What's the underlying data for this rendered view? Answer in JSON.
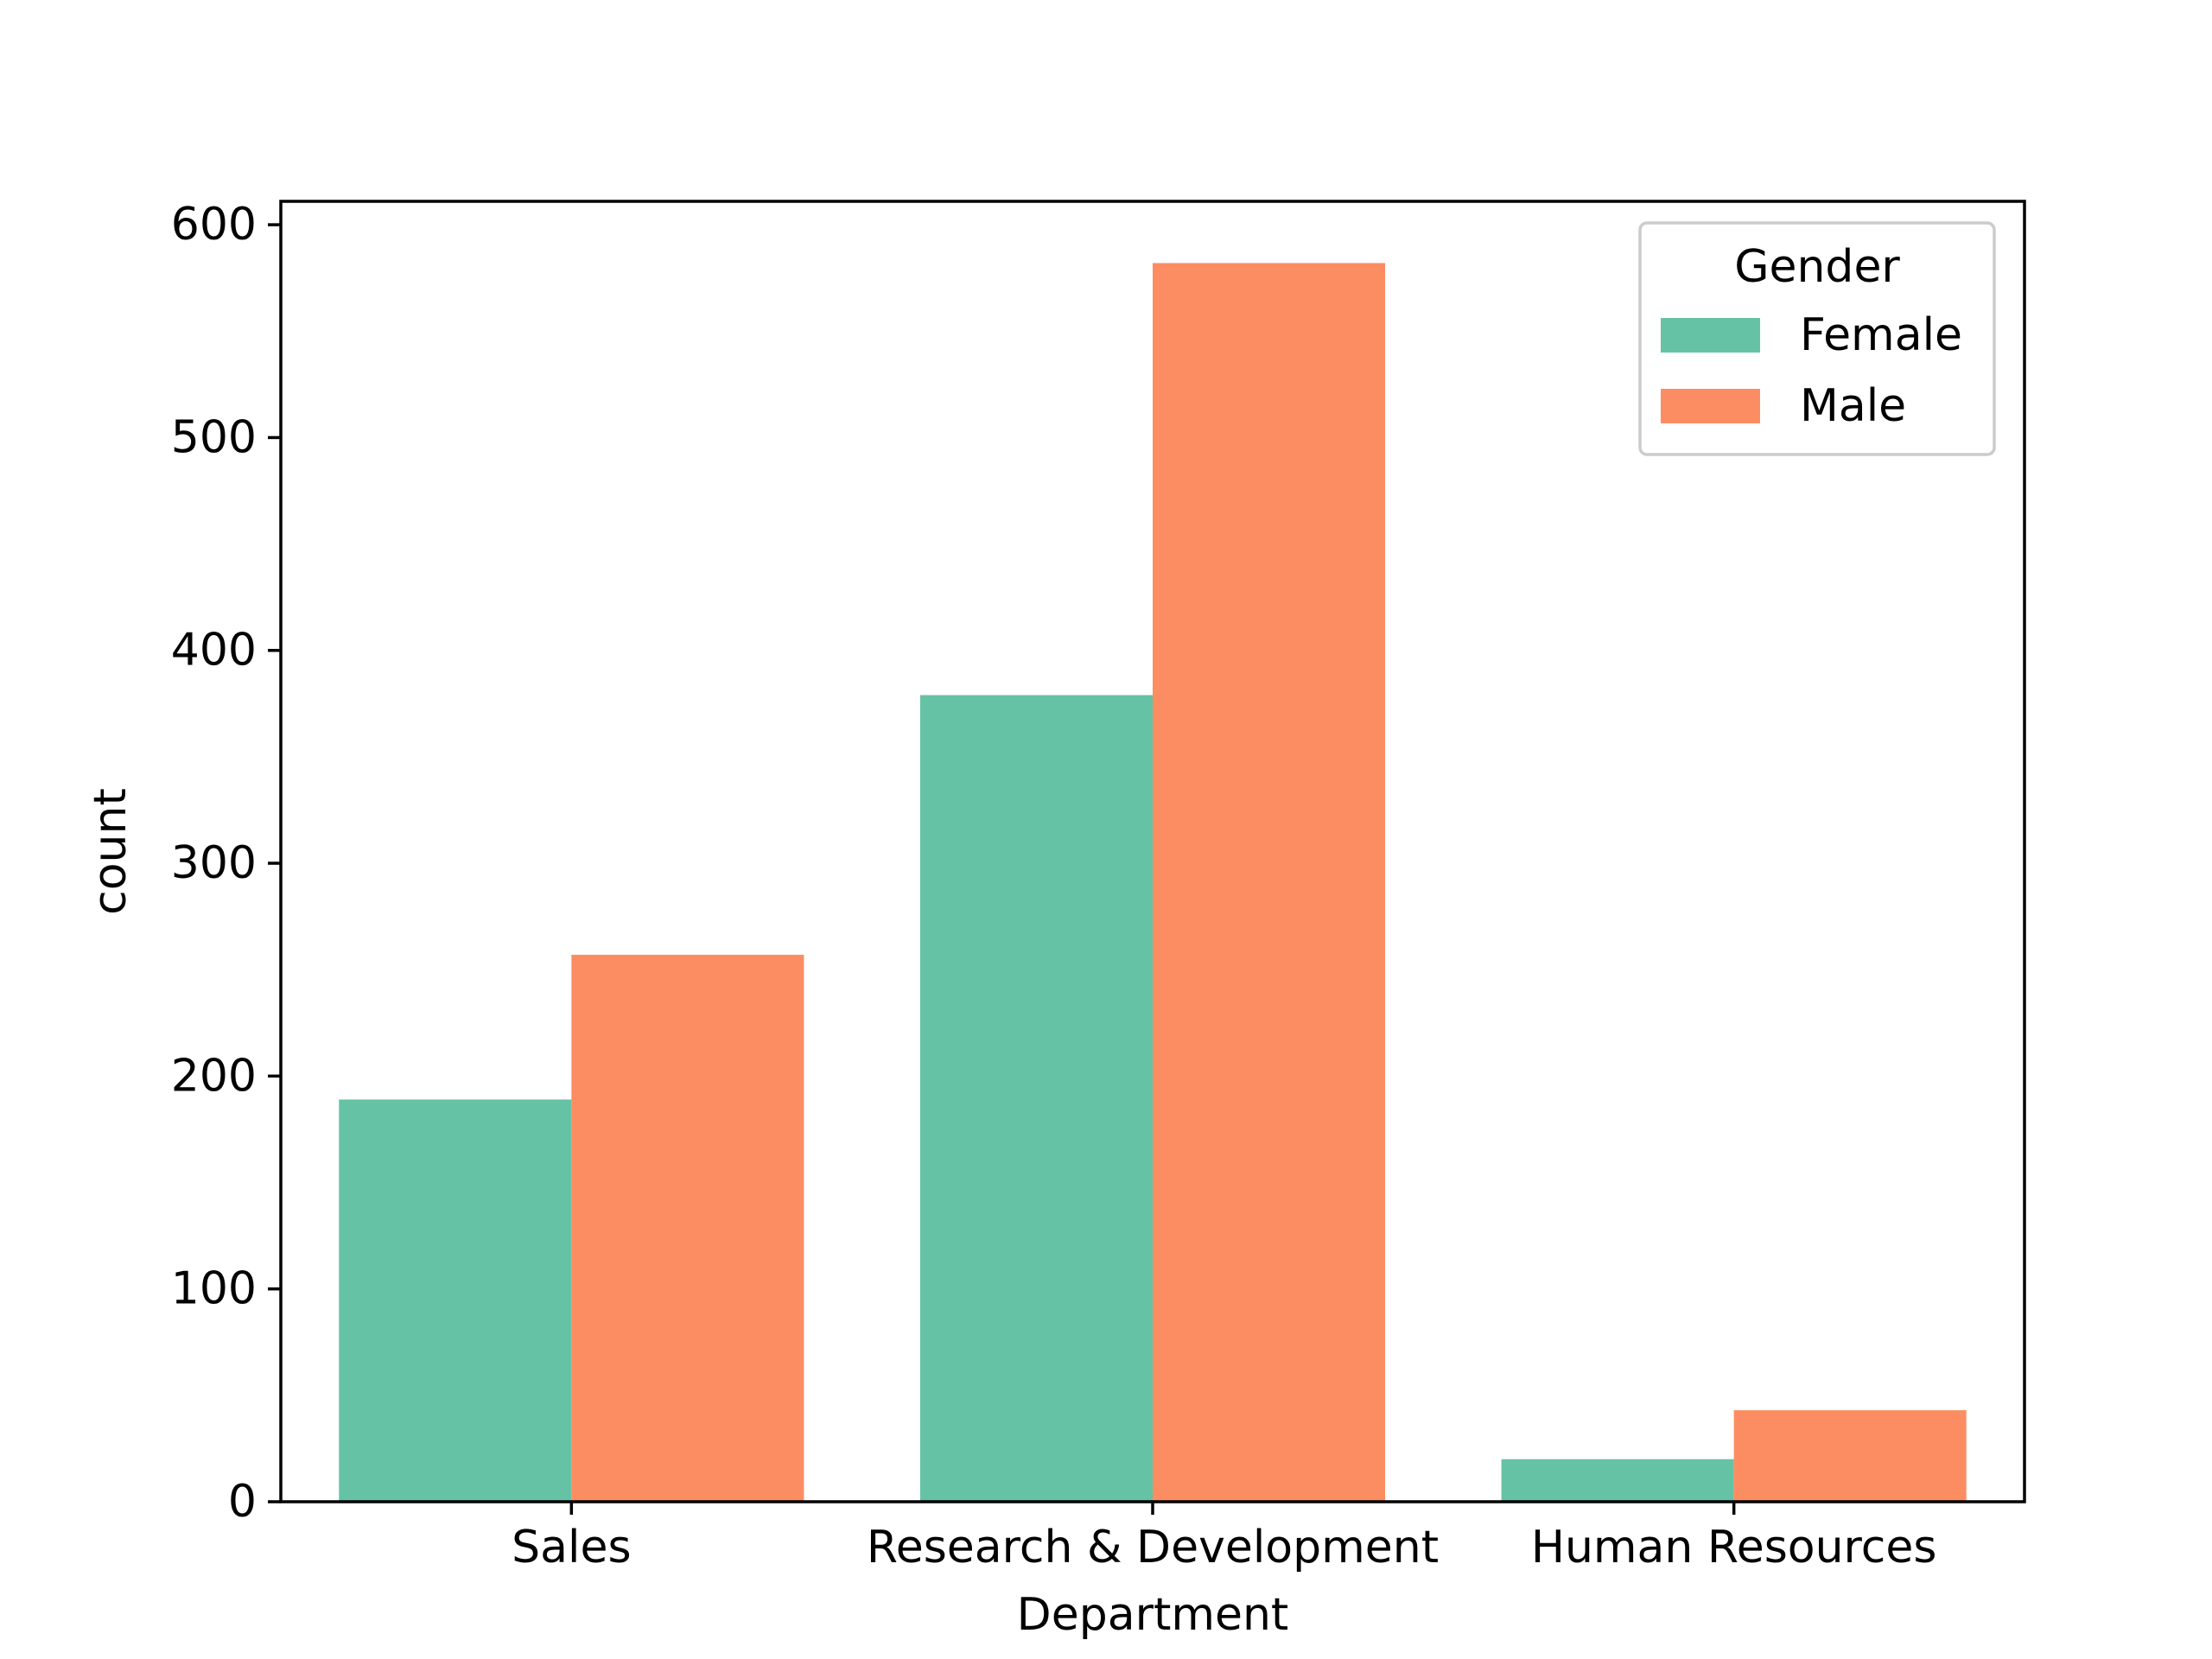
{
  "chart_data": {
    "type": "bar",
    "categories": [
      "Sales",
      "Research & Development",
      "Human Resources"
    ],
    "series": [
      {
        "name": "Female",
        "values": [
          189,
          379,
          20
        ],
        "color": "#66c2a5"
      },
      {
        "name": "Male",
        "values": [
          257,
          582,
          43
        ],
        "color": "#fc8d62"
      }
    ],
    "title": "",
    "xlabel": "Department",
    "ylabel": "count",
    "ylim": [
      0,
      611
    ],
    "yticks": [
      0,
      100,
      200,
      300,
      400,
      500,
      600
    ],
    "grid": false,
    "legend": {
      "title": "Gender",
      "position": "top-right"
    }
  }
}
